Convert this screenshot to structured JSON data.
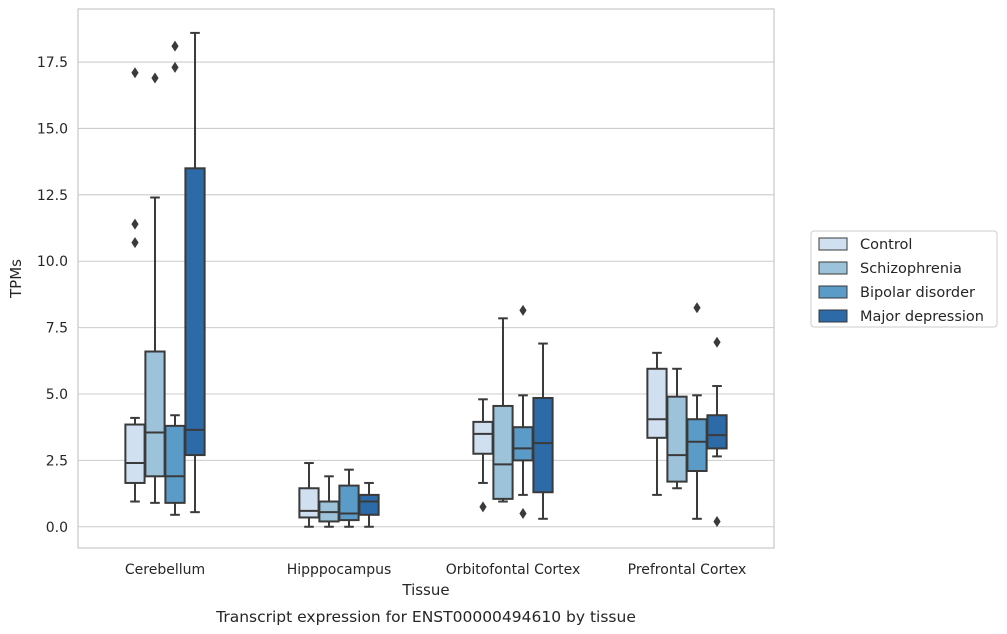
{
  "caption": "Transcript expression for ENST00000494610 by tissue",
  "chart_data": {
    "type": "box",
    "xlabel": "Tissue",
    "ylabel": "TPMs",
    "ylim": [
      -0.8,
      19.5
    ],
    "yticks": [
      "0.0",
      "2.5",
      "5.0",
      "7.5",
      "10.0",
      "12.5",
      "15.0",
      "17.5"
    ],
    "grid": "horizontal",
    "legend_position": "right",
    "categories": [
      "Cerebellum",
      "Hipppocampus",
      "Orbitofontal Cortex",
      "Prefrontal Cortex"
    ],
    "series": [
      {
        "name": "Control",
        "color": "#d0e0f0",
        "boxes": [
          {
            "whislo": 0.95,
            "q1": 1.65,
            "med": 2.4,
            "q3": 3.85,
            "whishi": 4.1,
            "fliers": [
              10.7,
              11.4,
              17.1
            ]
          },
          {
            "whislo": 0.0,
            "q1": 0.35,
            "med": 0.6,
            "q3": 1.45,
            "whishi": 2.4,
            "fliers": []
          },
          {
            "whislo": 1.65,
            "q1": 2.75,
            "med": 3.5,
            "q3": 3.95,
            "whishi": 4.8,
            "fliers": [
              0.75
            ]
          },
          {
            "whislo": 1.2,
            "q1": 3.35,
            "med": 4.05,
            "q3": 5.95,
            "whishi": 6.55,
            "fliers": []
          }
        ]
      },
      {
        "name": "Schizophrenia",
        "color": "#9cc3da",
        "boxes": [
          {
            "whislo": 0.9,
            "q1": 1.9,
            "med": 3.55,
            "q3": 6.6,
            "whishi": 12.4,
            "fliers": [
              16.9
            ]
          },
          {
            "whislo": 0.0,
            "q1": 0.2,
            "med": 0.55,
            "q3": 0.95,
            "whishi": 1.9,
            "fliers": []
          },
          {
            "whislo": 0.95,
            "q1": 1.05,
            "med": 2.35,
            "q3": 4.55,
            "whishi": 7.85,
            "fliers": []
          },
          {
            "whislo": 1.45,
            "q1": 1.7,
            "med": 2.7,
            "q3": 4.9,
            "whishi": 5.95,
            "fliers": []
          }
        ]
      },
      {
        "name": "Bipolar disorder",
        "color": "#5b9bc8",
        "boxes": [
          {
            "whislo": 0.45,
            "q1": 0.9,
            "med": 1.9,
            "q3": 3.8,
            "whishi": 4.2,
            "fliers": [
              17.3,
              18.1
            ]
          },
          {
            "whislo": 0.0,
            "q1": 0.25,
            "med": 0.5,
            "q3": 1.55,
            "whishi": 2.15,
            "fliers": []
          },
          {
            "whislo": 1.2,
            "q1": 2.5,
            "med": 2.95,
            "q3": 3.75,
            "whishi": 4.95,
            "fliers": [
              0.5,
              8.15
            ]
          },
          {
            "whislo": 0.3,
            "q1": 2.1,
            "med": 3.2,
            "q3": 4.05,
            "whishi": 4.95,
            "fliers": [
              8.25
            ]
          }
        ]
      },
      {
        "name": "Major depression",
        "color": "#2c6aa8",
        "boxes": [
          {
            "whislo": 0.55,
            "q1": 2.7,
            "med": 3.65,
            "q3": 13.5,
            "whishi": 18.6,
            "fliers": []
          },
          {
            "whislo": 0.0,
            "q1": 0.45,
            "med": 0.95,
            "q3": 1.2,
            "whishi": 1.65,
            "fliers": []
          },
          {
            "whislo": 0.3,
            "q1": 1.3,
            "med": 3.15,
            "q3": 4.85,
            "whishi": 6.9,
            "fliers": []
          },
          {
            "whislo": 2.65,
            "q1": 2.95,
            "med": 3.45,
            "q3": 4.2,
            "whishi": 5.3,
            "fliers": [
              0.2,
              6.95
            ]
          }
        ]
      }
    ]
  }
}
